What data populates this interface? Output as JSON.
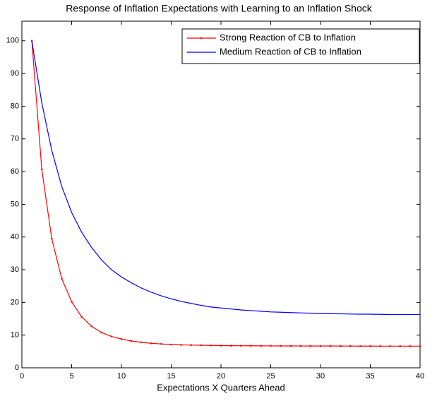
{
  "chart_data": {
    "type": "line",
    "title": "Response of Inflation Expectations with Learning to an Inflation Shock",
    "x_label": "Expectations X Quarters Ahead",
    "x": [
      1,
      2,
      3,
      4,
      5,
      6,
      7,
      8,
      9,
      10,
      11,
      12,
      13,
      14,
      15,
      16,
      17,
      18,
      19,
      20,
      21,
      22,
      23,
      24,
      25,
      26,
      27,
      28,
      29,
      30,
      31,
      32,
      33,
      34,
      35,
      36,
      37,
      38,
      39,
      40
    ],
    "series": [
      {
        "name": "Strong Reaction of CB to Inflation",
        "color": "#ff0000",
        "marker": true,
        "values": [
          100,
          60.7,
          39.5,
          27.3,
          20.2,
          15.6,
          12.7,
          10.8,
          9.6,
          8.8,
          8.2,
          7.8,
          7.5,
          7.3,
          7.1,
          7.0,
          6.95,
          6.9,
          6.85,
          6.8,
          6.78,
          6.76,
          6.74,
          6.72,
          6.71,
          6.7,
          6.69,
          6.68,
          6.67,
          6.66,
          6.66,
          6.65,
          6.65,
          6.64,
          6.64,
          6.63,
          6.63,
          6.62,
          6.62,
          6.62
        ]
      },
      {
        "name": "Medium Reaction of CB to Inflation",
        "color": "#0000ff",
        "marker": false,
        "values": [
          100,
          81,
          66.5,
          55.5,
          47.5,
          41.5,
          36.8,
          33,
          30,
          27.8,
          26,
          24.4,
          23.1,
          22,
          21.1,
          20.3,
          19.7,
          19.1,
          18.6,
          18.3,
          18,
          17.7,
          17.5,
          17.3,
          17.1,
          17,
          16.9,
          16.8,
          16.7,
          16.6,
          16.55,
          16.5,
          16.45,
          16.4,
          16.4,
          16.35,
          16.3,
          16.3,
          16.3,
          16.3
        ]
      }
    ],
    "xlim": [
      0,
      40
    ],
    "xticks": [
      0,
      5,
      10,
      15,
      20,
      25,
      30,
      35,
      40
    ],
    "ylim": [
      0,
      106
    ],
    "yticks": [
      0,
      10,
      20,
      30,
      40,
      50,
      60,
      70,
      80,
      90,
      100
    ],
    "legend_position": "top-right"
  }
}
